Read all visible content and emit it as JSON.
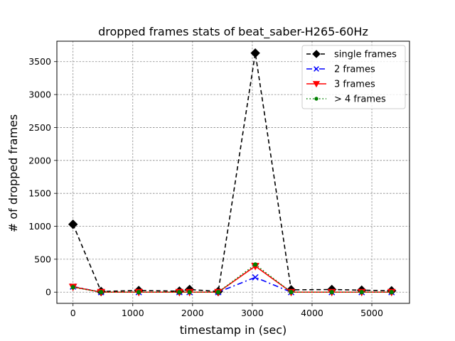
{
  "chart_data": {
    "type": "line",
    "title": "dropped frames stats of beat_saber-H265-60Hz",
    "xlabel": "timestamp in (sec)",
    "ylabel": "# of dropped frames",
    "xlim": [
      -270,
      5630
    ],
    "ylim": [
      -170,
      3810
    ],
    "xticks": [
      0,
      1000,
      2000,
      3000,
      4000,
      5000
    ],
    "yticks": [
      0,
      500,
      1000,
      1500,
      2000,
      2500,
      3000,
      3500
    ],
    "grid": true,
    "legend_position": "top-right",
    "x": [
      0,
      470,
      1100,
      1780,
      1950,
      2430,
      3050,
      3650,
      4330,
      4830,
      5330
    ],
    "series": [
      {
        "name": "single frames",
        "color": "#000000",
        "dash": "6,4",
        "marker": "diamond",
        "values": [
          1030,
          10,
          25,
          15,
          40,
          10,
          3630,
          35,
          40,
          30,
          20
        ]
      },
      {
        "name": "2 frames",
        "color": "#0000ff",
        "dash": "8,4,2,4",
        "marker": "x",
        "values": [
          85,
          0,
          0,
          0,
          0,
          0,
          225,
          0,
          0,
          0,
          0
        ]
      },
      {
        "name": "3 frames",
        "color": "#ff0000",
        "dash": "",
        "marker": "triangle-down",
        "values": [
          80,
          0,
          0,
          0,
          0,
          0,
          395,
          0,
          0,
          0,
          0
        ]
      },
      {
        "name": "> 4 frames",
        "color": "#008000",
        "dash": "1.5,3",
        "marker": "dot",
        "values": [
          75,
          0,
          0,
          0,
          0,
          0,
          420,
          0,
          0,
          0,
          0
        ]
      }
    ]
  }
}
